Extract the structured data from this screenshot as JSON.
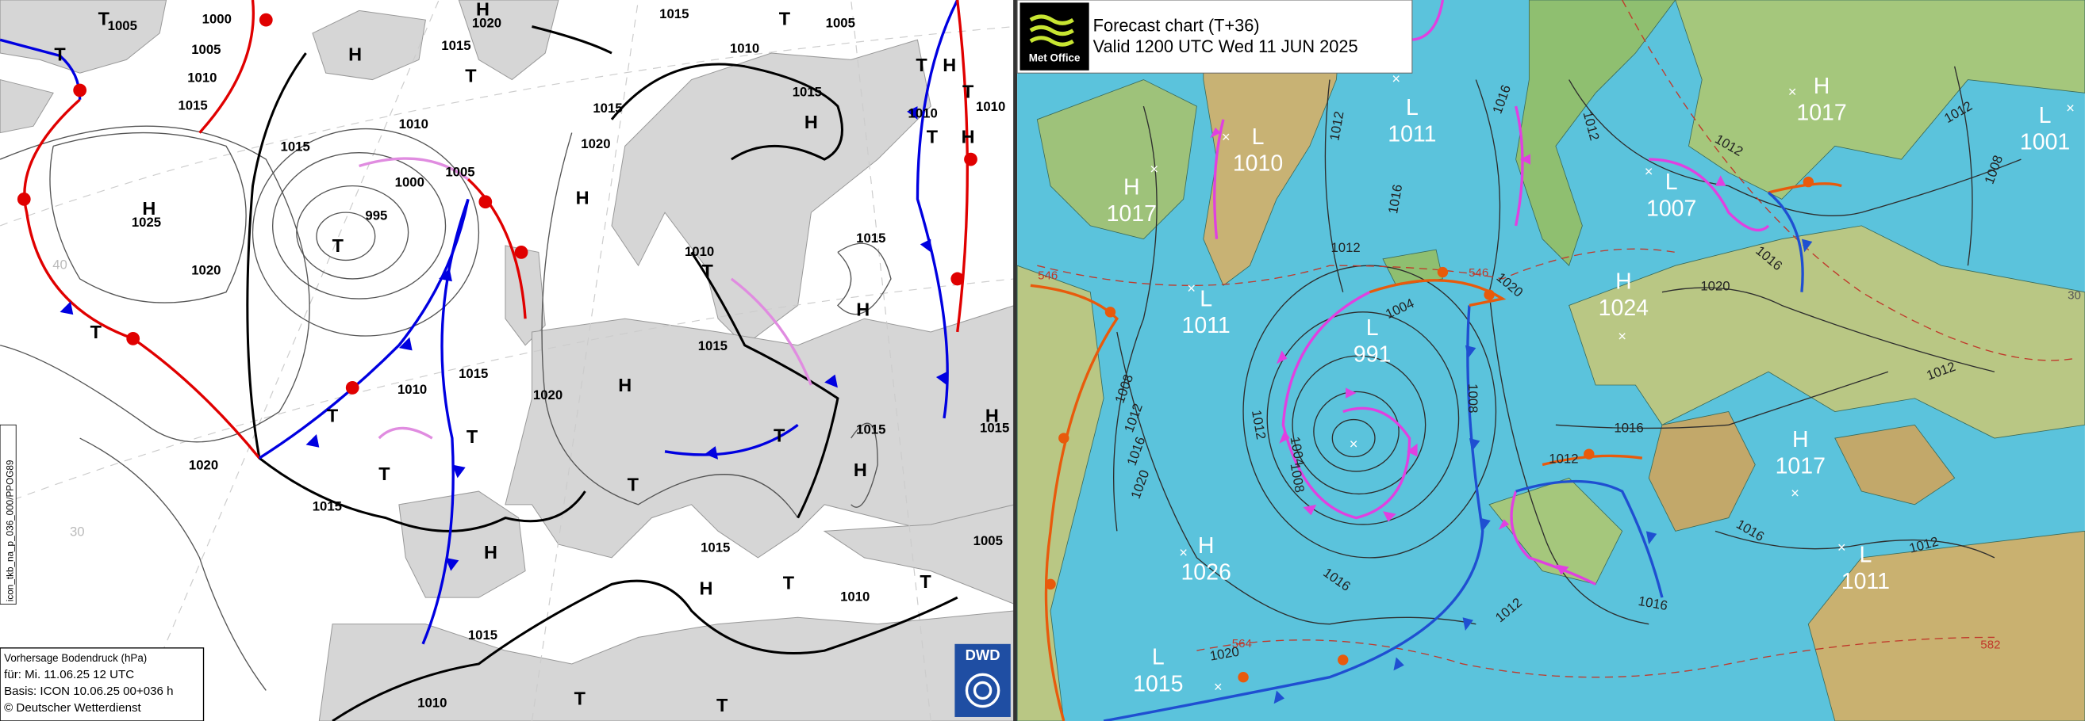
{
  "dwd": {
    "pressure_labels": [
      "T",
      "1005",
      "1000",
      "H",
      "1020",
      "1015",
      "T",
      "1005",
      "T",
      "1005",
      "1010",
      "1015",
      "H",
      "1015",
      "T",
      "1010",
      "1015",
      "1015",
      "H",
      "T",
      "H",
      "T",
      "1010",
      "1010",
      "T",
      "H",
      "1010",
      "1015",
      "1020",
      "1000",
      "1005",
      "H",
      "H",
      "1025",
      "995",
      "T",
      "1010",
      "T",
      "1015",
      "1020",
      "H",
      "T",
      "1015",
      "1015",
      "1010",
      "H",
      "1020",
      "T",
      "T",
      "1015",
      "H",
      "1015",
      "T",
      "T",
      "H",
      "1020",
      "T",
      "1015",
      "H",
      "1015",
      "1005",
      "T",
      "H",
      "T",
      "1010",
      "1015",
      "1010",
      "T",
      "T"
    ],
    "grid_labels": [
      "40",
      "30"
    ],
    "side_label": "icon_tkb_na_p_036_000/PPOG89",
    "legend": [
      "Vorhersage Bodendruck (hPa)",
      "für:  Mi. 11.06.25  12 UTC",
      "Basis: ICON  10.06.25 00+036 h",
      "© Deutscher Wetterdienst"
    ],
    "logo": "DWD"
  },
  "met_office": {
    "logo": "Met Office",
    "title": "Forecast chart (T+36)",
    "valid": "Valid 1200 UTC Wed 11 JUN 2025",
    "centers": [
      {
        "type": "L",
        "value": "1011"
      },
      {
        "type": "L",
        "value": "1010"
      },
      {
        "type": "H",
        "value": "1017"
      },
      {
        "type": "L",
        "value": "1011"
      },
      {
        "type": "L",
        "value": "991"
      },
      {
        "type": "H",
        "value": "1017"
      },
      {
        "type": "L",
        "value": "1001"
      },
      {
        "type": "L",
        "value": "1007"
      },
      {
        "type": "H",
        "value": "1024"
      },
      {
        "type": "H",
        "value": "1017"
      },
      {
        "type": "H",
        "value": "1026"
      },
      {
        "type": "L",
        "value": "1011"
      },
      {
        "type": "L",
        "value": "1015"
      }
    ],
    "isobar_labels": [
      "1012",
      "1016",
      "1016",
      "1012",
      "1012",
      "1012",
      "1008",
      "1016",
      "1020",
      "1012",
      "1004",
      "1020",
      "1008",
      "1012",
      "1016",
      "1020",
      "1012",
      "1004",
      "1008",
      "1008",
      "1016",
      "1012",
      "1012",
      "1016",
      "1012",
      "1016",
      "1012",
      "1016",
      "1020"
    ],
    "thickness_labels": [
      "546",
      "546",
      "564",
      "582"
    ],
    "grid_labels": [
      "30"
    ]
  }
}
